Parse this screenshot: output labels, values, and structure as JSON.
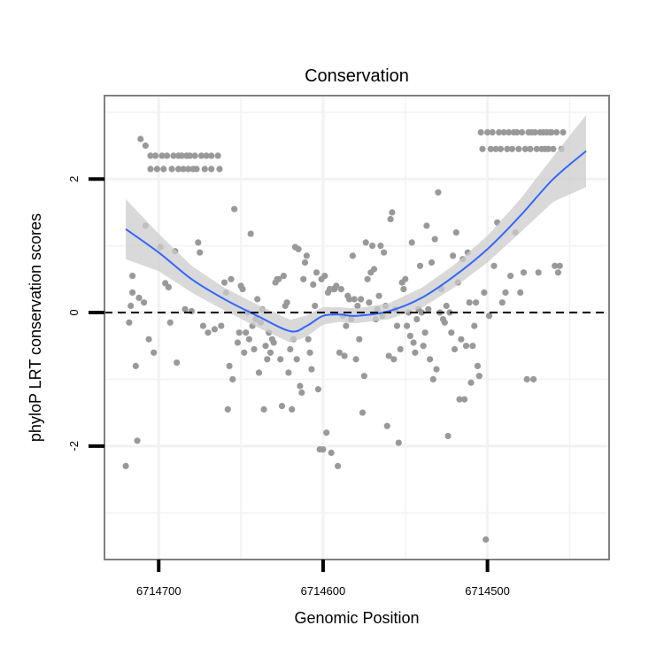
{
  "chart_data": {
    "type": "scatter",
    "title": "Conservation",
    "xlabel": "Genomic Position",
    "ylabel": "phyloP LRT conservation scores",
    "x_reversed": true,
    "xlim": [
      6714733,
      6714426
    ],
    "ylim": [
      -3.7,
      3.25
    ],
    "x_ticks": [
      6714700,
      6714600,
      6714500
    ],
    "x_tick_labels": [
      "6714700",
      "6714600",
      "6714500"
    ],
    "y_ticks": [
      -2,
      0,
      2
    ],
    "y_tick_labels": [
      "-2",
      "0",
      "2"
    ],
    "reference_line": {
      "y": 0,
      "style": "dashed"
    },
    "grid": true,
    "colors": {
      "points": "#999999",
      "smooth_line": "#3366ff",
      "ci_band": "#cccccc",
      "panel_border": "#7f7f7f",
      "grid": "#f2f2f2"
    },
    "smooth": {
      "x": [
        6714720,
        6714700,
        6714680,
        6714660,
        6714640,
        6714620,
        6714610,
        6714600,
        6714590,
        6714580,
        6714560,
        6714540,
        6714520,
        6714500,
        6714480,
        6714460,
        6714440
      ],
      "y": [
        1.25,
        0.9,
        0.5,
        0.2,
        -0.05,
        -0.28,
        -0.2,
        -0.05,
        -0.03,
        -0.05,
        0.02,
        0.22,
        0.55,
        0.95,
        1.45,
        2.0,
        2.42
      ],
      "lower": [
        0.8,
        0.62,
        0.3,
        0.03,
        -0.22,
        -0.45,
        -0.36,
        -0.18,
        -0.14,
        -0.16,
        -0.1,
        0.07,
        0.38,
        0.75,
        1.2,
        1.66,
        1.88
      ],
      "upper": [
        1.7,
        1.18,
        0.7,
        0.37,
        0.12,
        -0.11,
        -0.04,
        0.08,
        0.08,
        0.06,
        0.14,
        0.37,
        0.72,
        1.15,
        1.7,
        2.34,
        2.96
      ]
    },
    "points": [
      [
        6714720,
        -2.3
      ],
      [
        6714718,
        -0.15
      ],
      [
        6714717,
        0.1
      ],
      [
        6714716,
        0.3
      ],
      [
        6714716,
        0.55
      ],
      [
        6714714,
        -0.8
      ],
      [
        6714713,
        -1.92
      ],
      [
        6714712,
        0.22
      ],
      [
        6714711,
        2.6
      ],
      [
        6714709,
        0.15
      ],
      [
        6714708,
        1.3
      ],
      [
        6714708,
        2.5
      ],
      [
        6714706,
        -0.4
      ],
      [
        6714705,
        2.35
      ],
      [
        6714705,
        2.15
      ],
      [
        6714703,
        -0.6
      ],
      [
        6714702,
        2.35
      ],
      [
        6714701,
        2.15
      ],
      [
        6714699,
        0.98
      ],
      [
        6714698,
        2.35
      ],
      [
        6714697,
        2.15
      ],
      [
        6714696,
        0.44
      ],
      [
        6714695,
        2.35
      ],
      [
        6714694,
        0.38
      ],
      [
        6714693,
        -0.15
      ],
      [
        6714692,
        2.15
      ],
      [
        6714691,
        2.35
      ],
      [
        6714690,
        0.92
      ],
      [
        6714689,
        -0.75
      ],
      [
        6714688,
        2.15
      ],
      [
        6714688,
        2.35
      ],
      [
        6714686,
        2.35
      ],
      [
        6714685,
        2.15
      ],
      [
        6714684,
        0.05
      ],
      [
        6714683,
        2.35
      ],
      [
        6714682,
        2.15
      ],
      [
        6714681,
        2.35
      ],
      [
        6714680,
        0.02
      ],
      [
        6714679,
        2.15
      ],
      [
        6714678,
        2.35
      ],
      [
        6714677,
        2.15
      ],
      [
        6714676,
        1.05
      ],
      [
        6714675,
        0.9
      ],
      [
        6714674,
        2.35
      ],
      [
        6714673,
        -0.2
      ],
      [
        6714672,
        2.15
      ],
      [
        6714671,
        2.35
      ],
      [
        6714670,
        -0.3
      ],
      [
        6714668,
        2.35
      ],
      [
        6714668,
        2.15
      ],
      [
        6714666,
        -0.25
      ],
      [
        6714664,
        2.35
      ],
      [
        6714663,
        2.15
      ],
      [
        6714662,
        -0.2
      ],
      [
        6714660,
        0.45
      ],
      [
        6714659,
        0.3
      ],
      [
        6714658,
        -1.45
      ],
      [
        6714657,
        -0.8
      ],
      [
        6714656,
        0.5
      ],
      [
        6714655,
        -1.0
      ],
      [
        6714654,
        1.55
      ],
      [
        6714652,
        -0.45
      ],
      [
        6714651,
        -0.3
      ],
      [
        6714650,
        0.4
      ],
      [
        6714649,
        0.35
      ],
      [
        6714648,
        -0.6
      ],
      [
        6714647,
        -0.3
      ],
      [
        6714646,
        0.0
      ],
      [
        6714645,
        -0.4
      ],
      [
        6714644,
        1.18
      ],
      [
        6714643,
        -0.2
      ],
      [
        6714642,
        -0.55
      ],
      [
        6714641,
        -0.1
      ],
      [
        6714640,
        0.2
      ],
      [
        6714639,
        -0.9
      ],
      [
        6714638,
        -0.15
      ],
      [
        6714637,
        0.05
      ],
      [
        6714636,
        -1.45
      ],
      [
        6714635,
        -0.5
      ],
      [
        6714634,
        -0.7
      ],
      [
        6714633,
        -0.3
      ],
      [
        6714632,
        -0.6
      ],
      [
        6714631,
        -0.4
      ],
      [
        6714630,
        -0.45
      ],
      [
        6714629,
        0.45
      ],
      [
        6714628,
        0.5
      ],
      [
        6714627,
        0.5
      ],
      [
        6714626,
        -0.7
      ],
      [
        6714625,
        -1.4
      ],
      [
        6714624,
        0.55
      ],
      [
        6714623,
        0.1
      ],
      [
        6714622,
        0.15
      ],
      [
        6714621,
        -0.9
      ],
      [
        6714620,
        -0.55
      ],
      [
        6714619,
        -1.45
      ],
      [
        6714618,
        -0.4
      ],
      [
        6714617,
        0.98
      ],
      [
        6714616,
        -0.7
      ],
      [
        6714615,
        0.95
      ],
      [
        6714614,
        -1.1
      ],
      [
        6714613,
        -1.2
      ],
      [
        6714612,
        0.5
      ],
      [
        6714611,
        0.75
      ],
      [
        6714610,
        0.85
      ],
      [
        6714609,
        -0.4
      ],
      [
        6714608,
        -0.6
      ],
      [
        6714607,
        -0.85
      ],
      [
        6714606,
        0.42
      ],
      [
        6714605,
        0.1
      ],
      [
        6714604,
        0.6
      ],
      [
        6714603,
        -1.15
      ],
      [
        6714602,
        -2.05
      ],
      [
        6714601,
        0.5
      ],
      [
        6714600,
        -2.05
      ],
      [
        6714599,
        0.55
      ],
      [
        6714598,
        -1.8
      ],
      [
        6714597,
        0.3
      ],
      [
        6714596,
        0.35
      ],
      [
        6714595,
        -2.1
      ],
      [
        6714594,
        0.35
      ],
      [
        6714593,
        0.35
      ],
      [
        6714592,
        0.4
      ],
      [
        6714591,
        -2.3
      ],
      [
        6714590,
        -0.6
      ],
      [
        6714589,
        0.35
      ],
      [
        6714588,
        -0.05
      ],
      [
        6714587,
        -0.65
      ],
      [
        6714586,
        -0.2
      ],
      [
        6714585,
        0.25
      ],
      [
        6714584,
        0.2
      ],
      [
        6714583,
        -0.1
      ],
      [
        6714582,
        0.85
      ],
      [
        6714581,
        0.2
      ],
      [
        6714580,
        -0.7
      ],
      [
        6714579,
        0.1
      ],
      [
        6714578,
        -0.4
      ],
      [
        6714577,
        0.2
      ],
      [
        6714576,
        -1.5
      ],
      [
        6714575,
        -0.95
      ],
      [
        6714574,
        1.05
      ],
      [
        6714573,
        0.5
      ],
      [
        6714572,
        0.15
      ],
      [
        6714571,
        0.6
      ],
      [
        6714570,
        1.0
      ],
      [
        6714569,
        0.65
      ],
      [
        6714568,
        -0.1
      ],
      [
        6714567,
        0.05
      ],
      [
        6714566,
        0.25
      ],
      [
        6714565,
        1.0
      ],
      [
        6714564,
        -0.05
      ],
      [
        6714563,
        0.9
      ],
      [
        6714562,
        0.1
      ],
      [
        6714561,
        -1.7
      ],
      [
        6714560,
        -0.65
      ],
      [
        6714559,
        1.4
      ],
      [
        6714558,
        1.5
      ],
      [
        6714557,
        -0.7
      ],
      [
        6714556,
        0.05
      ],
      [
        6714555,
        -0.2
      ],
      [
        6714554,
        -1.95
      ],
      [
        6714553,
        -0.55
      ],
      [
        6714552,
        0.45
      ],
      [
        6714551,
        0.35
      ],
      [
        6714550,
        0.5
      ],
      [
        6714549,
        -0.2
      ],
      [
        6714548,
        0.0
      ],
      [
        6714547,
        -0.35
      ],
      [
        6714546,
        1.05
      ],
      [
        6714545,
        -0.45
      ],
      [
        6714544,
        -0.6
      ],
      [
        6714543,
        -0.1
      ],
      [
        6714542,
        0.05
      ],
      [
        6714541,
        0.7
      ],
      [
        6714540,
        0.0
      ],
      [
        6714539,
        -0.5
      ],
      [
        6714538,
        -0.3
      ],
      [
        6714537,
        1.3
      ],
      [
        6714536,
        0.05
      ],
      [
        6714535,
        -0.7
      ],
      [
        6714534,
        0.75
      ],
      [
        6714533,
        -1.0
      ],
      [
        6714532,
        1.1
      ],
      [
        6714531,
        -0.85
      ],
      [
        6714530,
        1.8
      ],
      [
        6714529,
        0.0
      ],
      [
        6714528,
        0.35
      ],
      [
        6714527,
        -0.1
      ],
      [
        6714526,
        -0.15
      ],
      [
        6714525,
        0.1
      ],
      [
        6714524,
        -1.85
      ],
      [
        6714523,
        0.0
      ],
      [
        6714522,
        -0.3
      ],
      [
        6714521,
        0.85
      ],
      [
        6714520,
        -0.55
      ],
      [
        6714519,
        1.2
      ],
      [
        6714518,
        0.45
      ],
      [
        6714517,
        -1.3
      ],
      [
        6714516,
        -0.4
      ],
      [
        6714515,
        0.8
      ],
      [
        6714514,
        -1.3
      ],
      [
        6714513,
        -0.5
      ],
      [
        6714512,
        0.9
      ],
      [
        6714511,
        0.15
      ],
      [
        6714510,
        -1.05
      ],
      [
        6714509,
        -0.5
      ],
      [
        6714508,
        -0.2
      ],
      [
        6714507,
        0.15
      ],
      [
        6714506,
        -0.8
      ],
      [
        6714505,
        -0.95
      ],
      [
        6714504,
        2.7
      ],
      [
        6714503,
        2.45
      ],
      [
        6714502,
        0.3
      ],
      [
        6714501,
        -3.4
      ],
      [
        6714500,
        2.7
      ],
      [
        6714499,
        -0.05
      ],
      [
        6714498,
        2.45
      ],
      [
        6714497,
        2.7
      ],
      [
        6714496,
        0.7
      ],
      [
        6714495,
        2.45
      ],
      [
        6714494,
        1.35
      ],
      [
        6714493,
        2.7
      ],
      [
        6714492,
        2.45
      ],
      [
        6714491,
        0.15
      ],
      [
        6714490,
        2.7
      ],
      [
        6714489,
        0.3
      ],
      [
        6714488,
        2.45
      ],
      [
        6714487,
        2.7
      ],
      [
        6714486,
        0.55
      ],
      [
        6714485,
        2.45
      ],
      [
        6714484,
        2.7
      ],
      [
        6714483,
        1.2
      ],
      [
        6714482,
        2.7
      ],
      [
        6714481,
        2.45
      ],
      [
        6714480,
        0.3
      ],
      [
        6714479,
        2.7
      ],
      [
        6714478,
        0.6
      ],
      [
        6714477,
        2.45
      ],
      [
        6714476,
        -1.0
      ],
      [
        6714475,
        2.7
      ],
      [
        6714474,
        2.45
      ],
      [
        6714473,
        2.7
      ],
      [
        6714472,
        -1.0
      ],
      [
        6714471,
        2.7
      ],
      [
        6714470,
        2.45
      ],
      [
        6714469,
        0.6
      ],
      [
        6714468,
        2.7
      ],
      [
        6714467,
        2.45
      ],
      [
        6714466,
        2.7
      ],
      [
        6714465,
        2.45
      ],
      [
        6714464,
        2.7
      ],
      [
        6714463,
        2.45
      ],
      [
        6714462,
        2.7
      ],
      [
        6714461,
        2.7
      ],
      [
        6714460,
        2.45
      ],
      [
        6714459,
        0.7
      ],
      [
        6714458,
        2.7
      ],
      [
        6714457,
        0.6
      ],
      [
        6714456,
        0.7
      ],
      [
        6714455,
        2.45
      ],
      [
        6714454,
        2.7
      ]
    ]
  }
}
